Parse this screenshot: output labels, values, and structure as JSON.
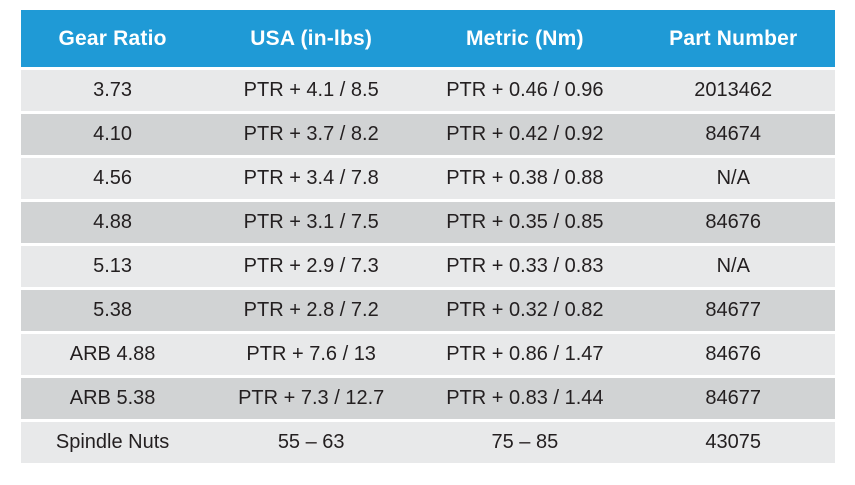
{
  "colors": {
    "header-bg": "#1F9AD6",
    "header-text": "#FFFFFF",
    "row-light": "#E8E9EA",
    "row-dark": "#D1D3D4",
    "cell-text": "#231F20",
    "page-bg": "#FFFFFF"
  },
  "table": {
    "columns": [
      "Gear Ratio",
      "USA (in-lbs)",
      "Metric (Nm)",
      "Part Number"
    ],
    "rows": [
      [
        "3.73",
        "PTR + 4.1 / 8.5",
        "PTR + 0.46 / 0.96",
        "2013462"
      ],
      [
        "4.10",
        "PTR + 3.7 / 8.2",
        "PTR + 0.42 / 0.92",
        "84674"
      ],
      [
        "4.56",
        "PTR + 3.4 / 7.8",
        "PTR + 0.38 / 0.88",
        "N/A"
      ],
      [
        "4.88",
        "PTR + 3.1 / 7.5",
        "PTR + 0.35 / 0.85",
        "84676"
      ],
      [
        "5.13",
        "PTR + 2.9 / 7.3",
        "PTR + 0.33 / 0.83",
        "N/A"
      ],
      [
        "5.38",
        "PTR + 2.8 / 7.2",
        "PTR + 0.32 / 0.82",
        "84677"
      ],
      [
        "ARB 4.88",
        "PTR + 7.6 / 13",
        "PTR + 0.86 / 1.47",
        "84676"
      ],
      [
        "ARB 5.38",
        "PTR + 7.3 / 12.7",
        "PTR + 0.83 / 1.44",
        "84677"
      ],
      [
        "Spindle Nuts",
        "55 – 63",
        "75 – 85",
        "43075"
      ]
    ]
  }
}
